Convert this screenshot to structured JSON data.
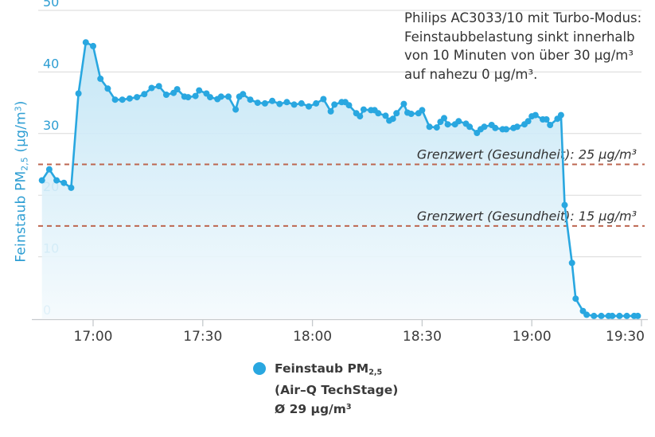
{
  "colors": {
    "series_blue": "#29a7e0",
    "axis_label_blue": "#2e9ed3",
    "threshold_red": "#bd6650",
    "grid_gray": "#dadada",
    "axis_gray": "#c6cacd",
    "text_dark": "#333333",
    "tick_text": "#3b3b3b",
    "area_top": "#bfe4f5",
    "area_bottom": "#f4fafd"
  },
  "axis": {
    "y_title_parts": [
      "Feinstaub PM",
      "2,5",
      " (µg/m",
      "3",
      ")"
    ]
  },
  "annotation": {
    "lines": [
      "Philips AC3033/10 mit Turbo-Modus:",
      "Feinstaubbelastung sinkt innerhalb",
      "von 10 Minuten von über 30 µg/m³",
      "auf nahezu 0 µg/m³."
    ]
  },
  "legend": {
    "name_prefix": "Feinstaub PM",
    "name_sub": "2,5",
    "name_line2": "(Air–Q TechStage)",
    "avg_prefix": "Ø 29 µg/m",
    "avg_sup": "3"
  },
  "chart_data": {
    "type": "area",
    "title": "",
    "xlabel": "",
    "ylabel": "Feinstaub PM2,5 (µg/m³)",
    "ylim": [
      0,
      50
    ],
    "y_ticks": [
      0,
      10,
      20,
      30,
      40,
      50
    ],
    "x_ticks": [
      "17:00",
      "17:30",
      "18:00",
      "18:30",
      "19:00",
      "19:30"
    ],
    "x_range": [
      "16:45",
      "19:30"
    ],
    "grid": true,
    "legend_position": "bottom",
    "thresholds": [
      {
        "value": 25,
        "label": "Grenzwert (Gesundheit): 25 µg/m³"
      },
      {
        "value": 15,
        "label": "Grenzwert (Gesundheit): 15 µg/m³"
      }
    ],
    "series": [
      {
        "name": "Feinstaub PM2,5 (Air–Q TechStage)",
        "average": "Ø 29 µg/m³",
        "points": [
          [
            "16:46",
            22.4
          ],
          [
            "16:48",
            24.2
          ],
          [
            "16:50",
            22.4
          ],
          [
            "16:52",
            22.0
          ],
          [
            "16:54",
            21.2
          ],
          [
            "16:56",
            36.5
          ],
          [
            "16:58",
            44.8
          ],
          [
            "17:00",
            44.2
          ],
          [
            "17:02",
            38.9
          ],
          [
            "17:04",
            37.3
          ],
          [
            "17:06",
            35.5
          ],
          [
            "17:08",
            35.5
          ],
          [
            "17:10",
            35.7
          ],
          [
            "17:12",
            35.9
          ],
          [
            "17:14",
            36.4
          ],
          [
            "17:16",
            37.4
          ],
          [
            "17:18",
            37.7
          ],
          [
            "17:20",
            36.3
          ],
          [
            "17:22",
            36.6
          ],
          [
            "17:23",
            37.2
          ],
          [
            "17:25",
            36.0
          ],
          [
            "17:26",
            35.9
          ],
          [
            "17:28",
            36.1
          ],
          [
            "17:29",
            37.0
          ],
          [
            "17:31",
            36.5
          ],
          [
            "17:32",
            35.9
          ],
          [
            "17:34",
            35.6
          ],
          [
            "17:35",
            36.0
          ],
          [
            "17:37",
            36.0
          ],
          [
            "17:39",
            33.9
          ],
          [
            "17:40",
            36.0
          ],
          [
            "17:41",
            36.4
          ],
          [
            "17:43",
            35.5
          ],
          [
            "17:45",
            35.0
          ],
          [
            "17:47",
            34.9
          ],
          [
            "17:49",
            35.3
          ],
          [
            "17:51",
            34.8
          ],
          [
            "17:53",
            35.1
          ],
          [
            "17:55",
            34.7
          ],
          [
            "17:57",
            34.9
          ],
          [
            "17:59",
            34.4
          ],
          [
            "18:01",
            34.9
          ],
          [
            "18:03",
            35.6
          ],
          [
            "18:05",
            33.6
          ],
          [
            "18:06",
            34.7
          ],
          [
            "18:08",
            35.1
          ],
          [
            "18:09",
            35.1
          ],
          [
            "18:10",
            34.6
          ],
          [
            "18:12",
            33.3
          ],
          [
            "18:13",
            32.8
          ],
          [
            "18:14",
            33.9
          ],
          [
            "18:16",
            33.8
          ],
          [
            "18:17",
            33.8
          ],
          [
            "18:18",
            33.3
          ],
          [
            "18:20",
            32.9
          ],
          [
            "18:21",
            32.1
          ],
          [
            "18:22",
            32.4
          ],
          [
            "18:23",
            33.3
          ],
          [
            "18:25",
            34.8
          ],
          [
            "18:26",
            33.4
          ],
          [
            "18:27",
            33.2
          ],
          [
            "18:29",
            33.3
          ],
          [
            "18:30",
            33.8
          ],
          [
            "18:32",
            31.1
          ],
          [
            "18:34",
            31.0
          ],
          [
            "18:35",
            31.9
          ],
          [
            "18:36",
            32.5
          ],
          [
            "18:37",
            31.5
          ],
          [
            "18:39",
            31.5
          ],
          [
            "18:40",
            32.0
          ],
          [
            "18:42",
            31.6
          ],
          [
            "18:43",
            31.1
          ],
          [
            "18:45",
            30.1
          ],
          [
            "18:46",
            30.7
          ],
          [
            "18:47",
            31.1
          ],
          [
            "18:49",
            31.4
          ],
          [
            "18:50",
            30.9
          ],
          [
            "18:52",
            30.7
          ],
          [
            "18:53",
            30.7
          ],
          [
            "18:55",
            30.9
          ],
          [
            "18:56",
            31.1
          ],
          [
            "18:58",
            31.5
          ],
          [
            "18:59",
            32.0
          ],
          [
            "19:00",
            32.8
          ],
          [
            "19:01",
            33.0
          ],
          [
            "19:03",
            32.3
          ],
          [
            "19:04",
            32.3
          ],
          [
            "19:05",
            31.4
          ],
          [
            "19:07",
            32.4
          ],
          [
            "19:08",
            33.0
          ],
          [
            "19:09",
            18.4
          ],
          [
            "19:11",
            9.0
          ],
          [
            "19:12",
            3.2
          ],
          [
            "19:14",
            1.2
          ],
          [
            "19:15",
            0.6
          ],
          [
            "19:17",
            0.4
          ],
          [
            "19:19",
            0.4
          ],
          [
            "19:21",
            0.4
          ],
          [
            "19:22",
            0.4
          ],
          [
            "19:24",
            0.4
          ],
          [
            "19:26",
            0.4
          ],
          [
            "19:28",
            0.4
          ],
          [
            "19:29",
            0.4
          ]
        ]
      }
    ]
  }
}
